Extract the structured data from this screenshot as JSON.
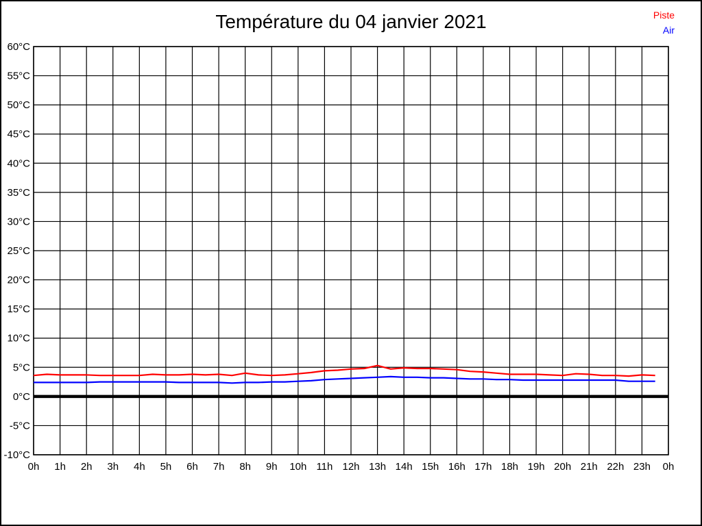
{
  "title": "Température du 04 janvier 2021",
  "legend": {
    "items": [
      {
        "label": "Piste",
        "color": "#ff0000"
      },
      {
        "label": "Air",
        "color": "#0000ff"
      }
    ]
  },
  "colors": {
    "grid": "#000000",
    "zero_line": "#000000",
    "text": "#000000",
    "page_border": "#000000",
    "background": "#ffffff"
  },
  "chart_data": {
    "type": "line",
    "title": "Température du 04 janvier 2021",
    "xlabel": "",
    "ylabel": "",
    "xlim": [
      0,
      24
    ],
    "ylim": [
      -10,
      60
    ],
    "grid": true,
    "zero_line_bold": true,
    "legend_position": "top-right",
    "y_tick_labels": [
      "60°C",
      "55°C",
      "50°C",
      "45°C",
      "40°C",
      "35°C",
      "30°C",
      "25°C",
      "20°C",
      "15°C",
      "10°C",
      "5°C",
      "0°C",
      "-5°C",
      "-10°C"
    ],
    "y_tick_values": [
      60,
      55,
      50,
      45,
      40,
      35,
      30,
      25,
      20,
      15,
      10,
      5,
      0,
      -5,
      -10
    ],
    "x_tick_labels": [
      "0h",
      "1h",
      "2h",
      "3h",
      "4h",
      "5h",
      "6h",
      "7h",
      "8h",
      "9h",
      "10h",
      "11h",
      "12h",
      "13h",
      "14h",
      "15h",
      "16h",
      "17h",
      "18h",
      "19h",
      "20h",
      "21h",
      "22h",
      "23h",
      "0h"
    ],
    "x_tick_values": [
      0,
      1,
      2,
      3,
      4,
      5,
      6,
      7,
      8,
      9,
      10,
      11,
      12,
      13,
      14,
      15,
      16,
      17,
      18,
      19,
      20,
      21,
      22,
      23,
      24
    ],
    "x": [
      0,
      0.5,
      1,
      1.5,
      2,
      2.5,
      3,
      3.5,
      4,
      4.5,
      5,
      5.5,
      6,
      6.5,
      7,
      7.5,
      8,
      8.5,
      9,
      9.5,
      10,
      10.5,
      11,
      11.5,
      12,
      12.5,
      13,
      13.5,
      14,
      14.5,
      15,
      15.5,
      16,
      16.5,
      17,
      17.5,
      18,
      18.5,
      19,
      19.5,
      20,
      20.5,
      21,
      21.5,
      22,
      22.5,
      23,
      23.5
    ],
    "series": [
      {
        "name": "Piste",
        "color": "#ff0000",
        "values": [
          3.6,
          3.8,
          3.7,
          3.7,
          3.7,
          3.6,
          3.6,
          3.6,
          3.6,
          3.8,
          3.7,
          3.7,
          3.8,
          3.7,
          3.8,
          3.6,
          4.0,
          3.7,
          3.6,
          3.7,
          3.9,
          4.1,
          4.4,
          4.5,
          4.7,
          4.8,
          5.3,
          4.7,
          4.9,
          4.8,
          4.8,
          4.7,
          4.6,
          4.3,
          4.2,
          4.0,
          3.8,
          3.8,
          3.8,
          3.7,
          3.6,
          3.9,
          3.8,
          3.6,
          3.6,
          3.5,
          3.7,
          3.6
        ]
      },
      {
        "name": "Air",
        "color": "#0000ff",
        "values": [
          2.4,
          2.4,
          2.4,
          2.4,
          2.4,
          2.5,
          2.5,
          2.5,
          2.5,
          2.5,
          2.5,
          2.4,
          2.4,
          2.4,
          2.4,
          2.3,
          2.4,
          2.4,
          2.5,
          2.5,
          2.6,
          2.7,
          2.9,
          3.0,
          3.1,
          3.2,
          3.3,
          3.4,
          3.3,
          3.3,
          3.2,
          3.2,
          3.1,
          3.0,
          3.0,
          2.9,
          2.9,
          2.8,
          2.8,
          2.8,
          2.8,
          2.8,
          2.8,
          2.8,
          2.8,
          2.6,
          2.6,
          2.6
        ]
      }
    ]
  }
}
